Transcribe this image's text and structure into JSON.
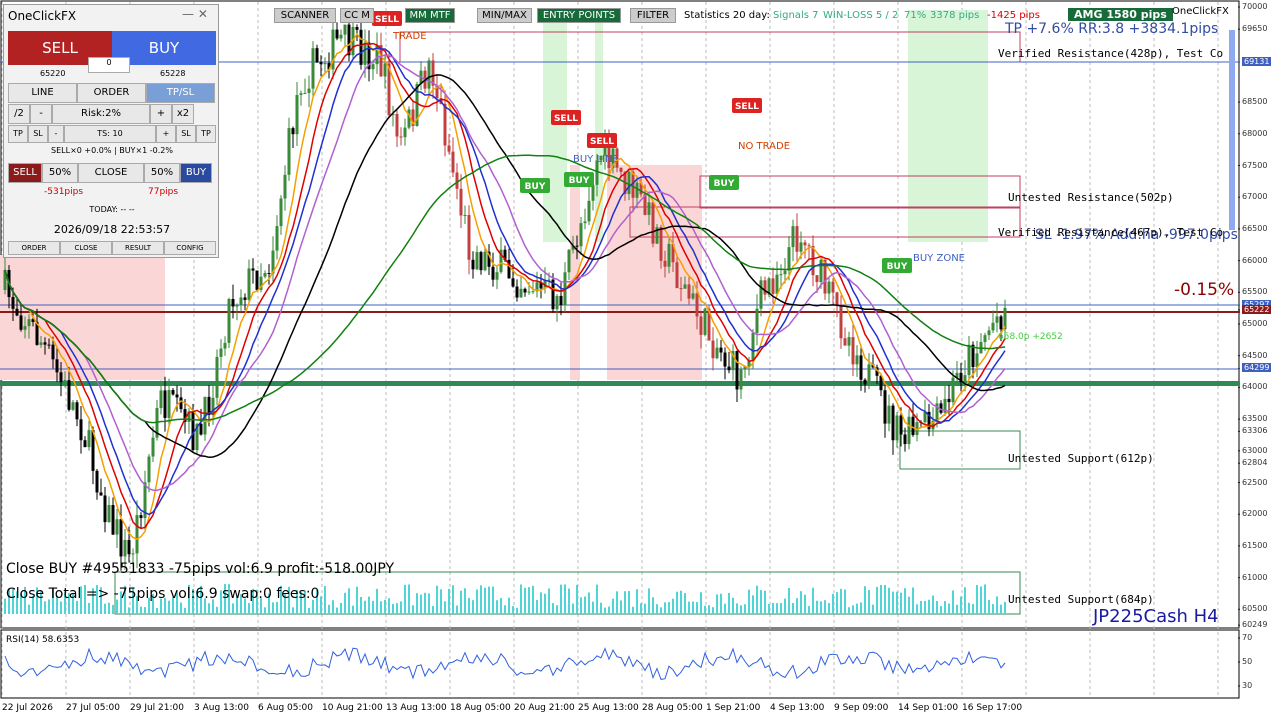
{
  "panel": {
    "title": "OneClickFX",
    "sell": "SELL",
    "buy": "BUY",
    "lot": "0",
    "sell_price": "65220",
    "buy_price": "65228",
    "tabs": [
      "LINE",
      "ORDER",
      "TP/SL"
    ],
    "risk_row": [
      "/2",
      "-",
      "Risk:2%",
      "+",
      "x2"
    ],
    "ts_row": [
      "TP",
      "SL",
      "-",
      "TS: 10",
      "+",
      "SL",
      "TP"
    ],
    "positions": "SELL×0 +0.0%  |  BUY×1 -0.2%",
    "close_row": [
      "SELL",
      "50%",
      "CLOSE",
      "50%",
      "BUY"
    ],
    "sell_pips": "-531pips",
    "buy_pips": "77pips",
    "today": "TODAY: -- --",
    "datetime": "2026/09/18  22:53:57",
    "bottom": [
      "ORDER",
      "CLOSE",
      "RESULT",
      "CONFIG"
    ]
  },
  "toolbar": {
    "buttons": [
      "SCANNER",
      "CC M",
      "MM MTF",
      "MIN/MAX",
      "ENTRY POINTS",
      "FILTER"
    ],
    "stats": "Statistics 20 day:",
    "signals": "Signals 7",
    "winloss": "WIN-LOSS 5 / 2",
    "pct": "71%",
    "pips": "3378 pips",
    "neg": "-1425 pips",
    "amg": "AMG   1580 pips",
    "brand": "OneClickFX"
  },
  "chart": {
    "tp": "TP +7.6% RR:3.8 +3834.1pips",
    "sl": "SL -1.97% Add:ha -997.0pips",
    "zones": [
      "Verified Resistance(428p), Test Co",
      "Untested Resistance(502p)",
      "Verified Resistance(467p), Test Co",
      "Untested Support(612p)",
      "Untested Support(684p)"
    ],
    "change": "-0.15%",
    "buy_zone": "BUY ZONE",
    "no_trade": "NO TRADE",
    "trade": "TRADE",
    "buy_line": "BUY LINE",
    "target": "658.0p +2652",
    "close_buy": "Close BUY #49551833 -75pips vol:6.9 profit:-518.00JPY",
    "close_total": "Close Total => -75pips vol:6.9 swap:0 fees:0",
    "symbol": "JP225Cash H4",
    "rsi": "RSI(14) 58.6353",
    "signals": [
      "SELL",
      "SELL",
      "SELL",
      "SELL",
      "BUY",
      "BUY",
      "BUY",
      "BUY"
    ]
  },
  "price_axis": [
    70000,
    69650,
    69131,
    68500,
    68000,
    67500,
    67000,
    66500,
    66000,
    65500,
    65297,
    65222,
    65000,
    64500,
    64299,
    64000,
    63500,
    63306,
    63000,
    62804,
    62500,
    62000,
    61500,
    61000,
    60500,
    60249
  ],
  "rsi_axis": [
    70,
    50,
    30
  ],
  "time_axis": [
    "22 Jul 2026",
    "27 Jul 05:00",
    "29 Jul 21:00",
    "3 Aug 13:00",
    "6 Aug 05:00",
    "10 Aug 21:00",
    "13 Aug 13:00",
    "18 Aug 05:00",
    "20 Aug 21:00",
    "25 Aug 13:00",
    "28 Aug 05:00",
    "1 Sep 21:00",
    "4 Sep 13:00",
    "9 Sep 09:00",
    "14 Sep 01:00",
    "16 Sep 17:00"
  ]
}
